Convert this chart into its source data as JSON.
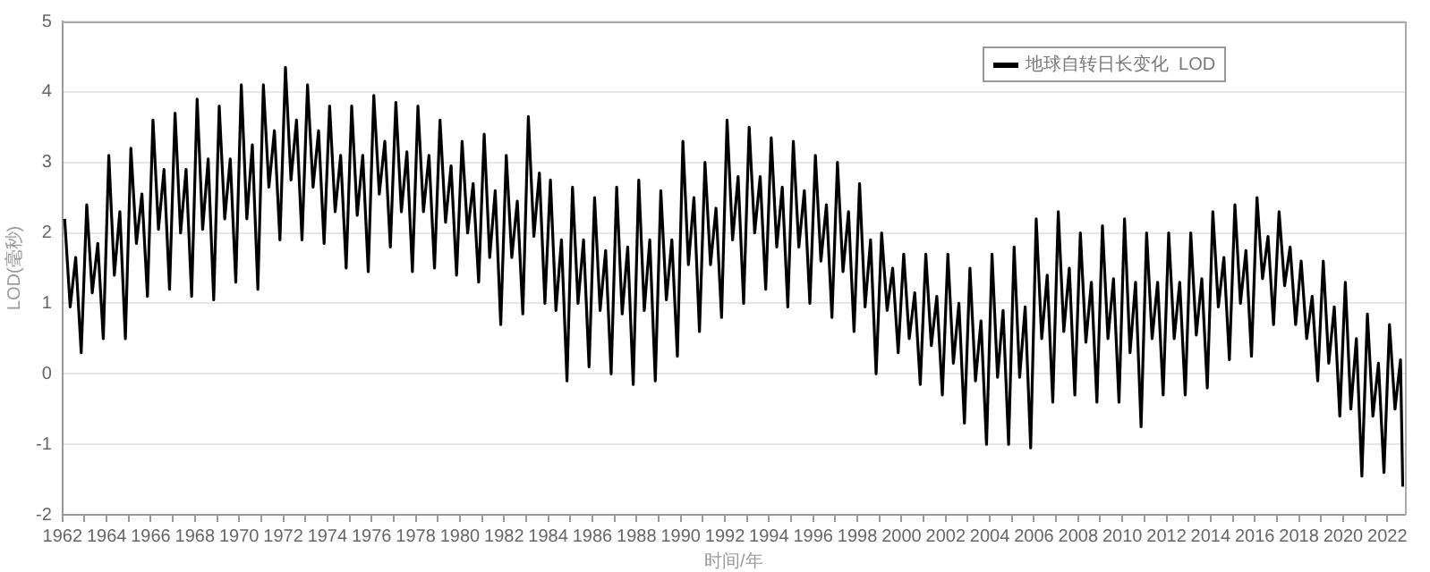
{
  "chart_data": {
    "type": "line",
    "xlabel": "时间/年",
    "ylabel": "LOD(毫秒)",
    "legend": "top right",
    "grid": "y",
    "marker": "none",
    "line_style": "solid",
    "xlim": [
      1962,
      2022.8
    ],
    "ylim": [
      -2,
      5
    ],
    "yticks": [
      -2,
      -1,
      0,
      1,
      2,
      3,
      4,
      5
    ],
    "xticks": [
      1962,
      {
        "value": 1963,
        "label": null
      },
      1964,
      {
        "value": 1965,
        "label": null
      },
      1966,
      {
        "value": 1967,
        "label": null
      },
      1968,
      {
        "value": 1969,
        "label": null
      },
      1970,
      {
        "value": 1971,
        "label": null
      },
      1972,
      {
        "value": 1973,
        "label": null
      },
      1974,
      {
        "value": 1975,
        "label": null
      },
      1976,
      {
        "value": 1977,
        "label": null
      },
      1978,
      {
        "value": 1979,
        "label": null
      },
      1980,
      {
        "value": 1981,
        "label": null
      },
      1982,
      {
        "value": 1983,
        "label": null
      },
      1984,
      {
        "value": 1985,
        "label": null
      },
      1986,
      {
        "value": 1987,
        "label": null
      },
      1988,
      {
        "value": 1989,
        "label": null
      },
      1990,
      {
        "value": 1991,
        "label": null
      },
      1992,
      {
        "value": 1993,
        "label": null
      },
      1994,
      {
        "value": 1995,
        "label": null
      },
      1996,
      {
        "value": 1997,
        "label": null
      },
      1998,
      {
        "value": 1999,
        "label": null
      },
      2000,
      {
        "value": 2001,
        "label": null
      },
      2002,
      {
        "value": 2003,
        "label": null
      },
      2004,
      {
        "value": 2005,
        "label": null
      },
      2006,
      {
        "value": 2007,
        "label": null
      },
      2008,
      {
        "value": 2009,
        "label": null
      },
      2010,
      {
        "value": 2011,
        "label": null
      },
      2012,
      {
        "value": 2013,
        "label": null
      },
      2014,
      {
        "value": 2015,
        "label": null
      },
      2016,
      {
        "value": 2017,
        "label": null
      },
      2018,
      {
        "value": 2019,
        "label": null
      },
      2020,
      {
        "value": 2021,
        "label": null
      },
      2022
    ],
    "series": [
      {
        "name": "地球自转日长变化  LOD",
        "color": "#000000",
        "x": [
          1962.1,
          1962.35,
          1962.6,
          1962.85,
          1963.1,
          1963.35,
          1963.6,
          1963.85,
          1964.1,
          1964.35,
          1964.6,
          1964.85,
          1965.1,
          1965.35,
          1965.6,
          1965.85,
          1966.1,
          1966.35,
          1966.6,
          1966.85,
          1967.1,
          1967.35,
          1967.6,
          1967.85,
          1968.1,
          1968.35,
          1968.6,
          1968.85,
          1969.1,
          1969.35,
          1969.6,
          1969.85,
          1970.1,
          1970.35,
          1970.6,
          1970.85,
          1971.1,
          1971.35,
          1971.6,
          1971.85,
          1972.1,
          1972.35,
          1972.6,
          1972.85,
          1973.1,
          1973.35,
          1973.6,
          1973.85,
          1974.1,
          1974.35,
          1974.6,
          1974.85,
          1975.1,
          1975.35,
          1975.6,
          1975.85,
          1976.1,
          1976.35,
          1976.6,
          1976.85,
          1977.1,
          1977.35,
          1977.6,
          1977.85,
          1978.1,
          1978.35,
          1978.6,
          1978.85,
          1979.1,
          1979.35,
          1979.6,
          1979.85,
          1980.1,
          1980.35,
          1980.6,
          1980.85,
          1981.1,
          1981.35,
          1981.6,
          1981.85,
          1982.1,
          1982.35,
          1982.6,
          1982.85,
          1983.1,
          1983.35,
          1983.6,
          1983.85,
          1984.1,
          1984.35,
          1984.6,
          1984.85,
          1985.1,
          1985.35,
          1985.6,
          1985.85,
          1986.1,
          1986.35,
          1986.6,
          1986.85,
          1987.1,
          1987.35,
          1987.6,
          1987.85,
          1988.1,
          1988.35,
          1988.6,
          1988.85,
          1989.1,
          1989.35,
          1989.6,
          1989.85,
          1990.1,
          1990.35,
          1990.6,
          1990.85,
          1991.1,
          1991.35,
          1991.6,
          1991.85,
          1992.1,
          1992.35,
          1992.6,
          1992.85,
          1993.1,
          1993.35,
          1993.6,
          1993.85,
          1994.1,
          1994.35,
          1994.6,
          1994.85,
          1995.1,
          1995.35,
          1995.6,
          1995.85,
          1996.1,
          1996.35,
          1996.6,
          1996.85,
          1997.1,
          1997.35,
          1997.6,
          1997.85,
          1998.1,
          1998.35,
          1998.6,
          1998.85,
          1999.1,
          1999.35,
          1999.6,
          1999.85,
          2000.1,
          2000.35,
          2000.6,
          2000.85,
          2001.1,
          2001.35,
          2001.6,
          2001.85,
          2002.1,
          2002.35,
          2002.6,
          2002.85,
          2003.1,
          2003.35,
          2003.6,
          2003.85,
          2004.1,
          2004.35,
          2004.6,
          2004.85,
          2005.1,
          2005.35,
          2005.6,
          2005.85,
          2006.1,
          2006.35,
          2006.6,
          2006.85,
          2007.1,
          2007.35,
          2007.6,
          2007.85,
          2008.1,
          2008.35,
          2008.6,
          2008.85,
          2009.1,
          2009.35,
          2009.6,
          2009.85,
          2010.1,
          2010.35,
          2010.6,
          2010.85,
          2011.1,
          2011.35,
          2011.6,
          2011.85,
          2012.1,
          2012.35,
          2012.6,
          2012.85,
          2013.1,
          2013.35,
          2013.6,
          2013.85,
          2014.1,
          2014.35,
          2014.6,
          2014.85,
          2015.1,
          2015.35,
          2015.6,
          2015.85,
          2016.1,
          2016.35,
          2016.6,
          2016.85,
          2017.1,
          2017.35,
          2017.6,
          2017.85,
          2018.1,
          2018.35,
          2018.6,
          2018.85,
          2019.1,
          2019.35,
          2019.6,
          2019.85,
          2020.1,
          2020.35,
          2020.6,
          2020.85,
          2021.1,
          2021.35,
          2021.6,
          2021.85,
          2022.1,
          2022.35,
          2022.6,
          2022.7
        ],
        "values": [
          2.2,
          0.95,
          1.65,
          0.3,
          2.4,
          1.15,
          1.85,
          0.5,
          3.1,
          1.4,
          2.3,
          0.5,
          3.2,
          1.85,
          2.55,
          1.1,
          3.6,
          2.05,
          2.9,
          1.2,
          3.7,
          2.0,
          2.9,
          1.1,
          3.9,
          2.05,
          3.05,
          1.05,
          3.8,
          2.2,
          3.05,
          1.3,
          4.1,
          2.2,
          3.25,
          1.2,
          4.1,
          2.65,
          3.45,
          1.9,
          4.35,
          2.75,
          3.6,
          1.9,
          4.1,
          2.65,
          3.45,
          1.85,
          3.8,
          2.3,
          3.1,
          1.5,
          3.8,
          2.25,
          3.1,
          1.45,
          3.95,
          2.55,
          3.3,
          1.8,
          3.85,
          2.3,
          3.15,
          1.45,
          3.8,
          2.3,
          3.1,
          1.5,
          3.6,
          2.15,
          2.95,
          1.4,
          3.3,
          2.0,
          2.7,
          1.3,
          3.4,
          1.65,
          2.6,
          0.7,
          3.1,
          1.65,
          2.45,
          0.85,
          3.65,
          1.95,
          2.85,
          1.0,
          2.75,
          0.9,
          1.9,
          -0.1,
          2.65,
          1.0,
          1.9,
          0.1,
          2.5,
          0.9,
          1.75,
          0.0,
          2.65,
          0.85,
          1.8,
          -0.15,
          2.75,
          0.9,
          1.9,
          -0.1,
          2.6,
          1.05,
          1.9,
          0.25,
          3.3,
          1.55,
          2.5,
          0.6,
          3.0,
          1.55,
          2.35,
          0.8,
          3.6,
          1.9,
          2.8,
          1.0,
          3.5,
          2.0,
          2.8,
          1.2,
          3.35,
          1.8,
          2.65,
          0.95,
          3.3,
          1.8,
          2.6,
          1.0,
          3.1,
          1.6,
          2.4,
          0.8,
          3.0,
          1.45,
          2.3,
          0.6,
          2.7,
          0.95,
          1.9,
          0.0,
          2.0,
          0.9,
          1.5,
          0.3,
          1.7,
          0.5,
          1.15,
          -0.15,
          1.7,
          0.4,
          1.1,
          -0.3,
          1.7,
          0.15,
          1.0,
          -0.7,
          1.5,
          -0.1,
          0.75,
          -1.0,
          1.7,
          -0.05,
          0.9,
          -1.0,
          1.8,
          -0.05,
          0.95,
          -1.05,
          2.2,
          0.5,
          1.4,
          -0.4,
          2.3,
          0.6,
          1.5,
          -0.3,
          2.0,
          0.45,
          1.3,
          -0.4,
          2.1,
          0.5,
          1.35,
          -0.4,
          2.2,
          0.3,
          1.3,
          -0.75,
          2.0,
          0.5,
          1.3,
          -0.3,
          2.0,
          0.5,
          1.3,
          -0.3,
          2.0,
          0.55,
          1.35,
          -0.2,
          2.3,
          0.95,
          1.65,
          0.2,
          2.4,
          1.0,
          1.75,
          0.25,
          2.5,
          1.35,
          1.95,
          0.7,
          2.3,
          1.25,
          1.8,
          0.7,
          1.6,
          0.5,
          1.1,
          -0.1,
          1.6,
          0.15,
          0.95,
          -0.6,
          1.3,
          -0.5,
          0.5,
          -1.45,
          0.85,
          -0.6,
          0.15,
          -1.4,
          0.7,
          -0.5,
          0.2,
          -1.6
        ]
      }
    ]
  }
}
